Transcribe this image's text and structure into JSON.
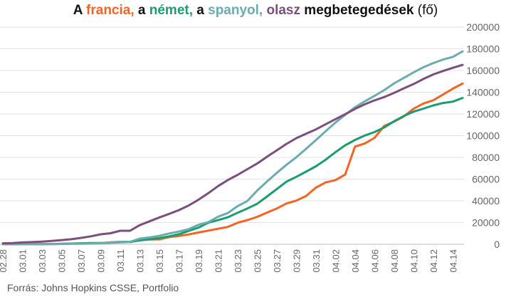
{
  "title": {
    "t1": "A ",
    "s1": "francia,",
    "t2": " a ",
    "s2": "német,",
    "t3": " a ",
    "s3": "spanyol,",
    "t4": " ",
    "s4": "olasz",
    "t5": " megbetegedések",
    "t6": " (fő)"
  },
  "source": "Forrás: Johns Hopkins CSSE, Portfolio",
  "chart_data": {
    "type": "line",
    "title": "A francia, a német, a spanyol, olasz megbetegedések (fő)",
    "xlabel": "",
    "ylabel": "",
    "ylim": [
      0,
      200000
    ],
    "y_ticks": [
      0,
      20000,
      40000,
      60000,
      80000,
      100000,
      120000,
      140000,
      160000,
      180000,
      200000
    ],
    "y_axis_position": "right",
    "grid": true,
    "legend": "none",
    "x": [
      "02.28",
      "02.29",
      "03.01",
      "03.02",
      "03.03",
      "03.04",
      "03.05",
      "03.06",
      "03.07",
      "03.08",
      "03.09",
      "03.10",
      "03.11",
      "03.12",
      "03.13",
      "03.14",
      "03.15",
      "03.16",
      "03.17",
      "03.18",
      "03.19",
      "03.20",
      "03.21",
      "03.22",
      "03.23",
      "03.24",
      "03.25",
      "03.26",
      "03.27",
      "03.28",
      "03.29",
      "03.30",
      "03.31",
      "04.01",
      "04.02",
      "04.03",
      "04.04",
      "04.05",
      "04.06",
      "04.07",
      "04.08",
      "04.09",
      "04.10",
      "04.11",
      "04.12",
      "04.13",
      "04.14",
      "04.15"
    ],
    "x_tick_labels": [
      "02.28",
      "03.01",
      "03.03",
      "03.05",
      "03.07",
      "03.09",
      "03.11",
      "03.13",
      "03.15",
      "03.17",
      "03.19",
      "03.21",
      "03.23",
      "03.25",
      "03.27",
      "03.29",
      "03.31",
      "04.02",
      "04.04",
      "04.06",
      "04.08",
      "04.10",
      "04.12",
      "04.14"
    ],
    "series": [
      {
        "name": "francia",
        "color": "#f26522",
        "values": [
          57,
          100,
          130,
          191,
          204,
          285,
          423,
          653,
          949,
          1126,
          1209,
          1784,
          2284,
          2281,
          3661,
          4469,
          4499,
          6633,
          7652,
          9043,
          10871,
          12612,
          14282,
          16018,
          19856,
          22304,
          25233,
          29155,
          32964,
          37575,
          40174,
          44550,
          52128,
          56989,
          59105,
          64338,
          89953,
          92839,
          98010,
          109069,
          112950,
          117749,
          124869,
          129654,
          132591,
          137877,
          143303,
          147969
        ]
      },
      {
        "name": "német",
        "color": "#1a9e6e",
        "values": [
          48,
          79,
          130,
          159,
          196,
          262,
          482,
          670,
          799,
          1040,
          1176,
          1457,
          1908,
          2078,
          3675,
          4585,
          5795,
          7272,
          9257,
          12327,
          15320,
          19848,
          22213,
          24873,
          29056,
          32986,
          37323,
          43938,
          50871,
          57695,
          62095,
          66885,
          71808,
          77872,
          84794,
          91159,
          96092,
          100123,
          103374,
          107663,
          113296,
          118181,
          122171,
          124908,
          127854,
          130072,
          131359,
          134753
        ]
      },
      {
        "name": "spanyol",
        "color": "#6aacb0",
        "values": [
          32,
          45,
          84,
          120,
          165,
          222,
          259,
          400,
          500,
          673,
          1073,
          1695,
          2277,
          2277,
          5232,
          6391,
          7798,
          9942,
          11748,
          13910,
          17963,
          20410,
          25374,
          28768,
          35136,
          39885,
          49515,
          57786,
          65719,
          73235,
          80110,
          87956,
          95923,
          104118,
          112065,
          119199,
          126168,
          131646,
          136675,
          141942,
          148220,
          153222,
          158273,
          163027,
          166831,
          170099,
          172541,
          177644
        ]
      },
      {
        "name": "olasz",
        "color": "#7b4f7c",
        "values": [
          888,
          1128,
          1694,
          2036,
          2502,
          3089,
          3858,
          4636,
          5883,
          7375,
          9172,
          10149,
          12462,
          12462,
          17660,
          21157,
          24747,
          27980,
          31506,
          35713,
          41035,
          47021,
          53578,
          59138,
          63927,
          69176,
          74386,
          80589,
          86498,
          92472,
          97689,
          101739,
          105792,
          110574,
          115242,
          119827,
          124632,
          128948,
          132547,
          135586,
          139422,
          143626,
          147577,
          152271,
          156363,
          159516,
          162488,
          165155
        ]
      }
    ]
  }
}
